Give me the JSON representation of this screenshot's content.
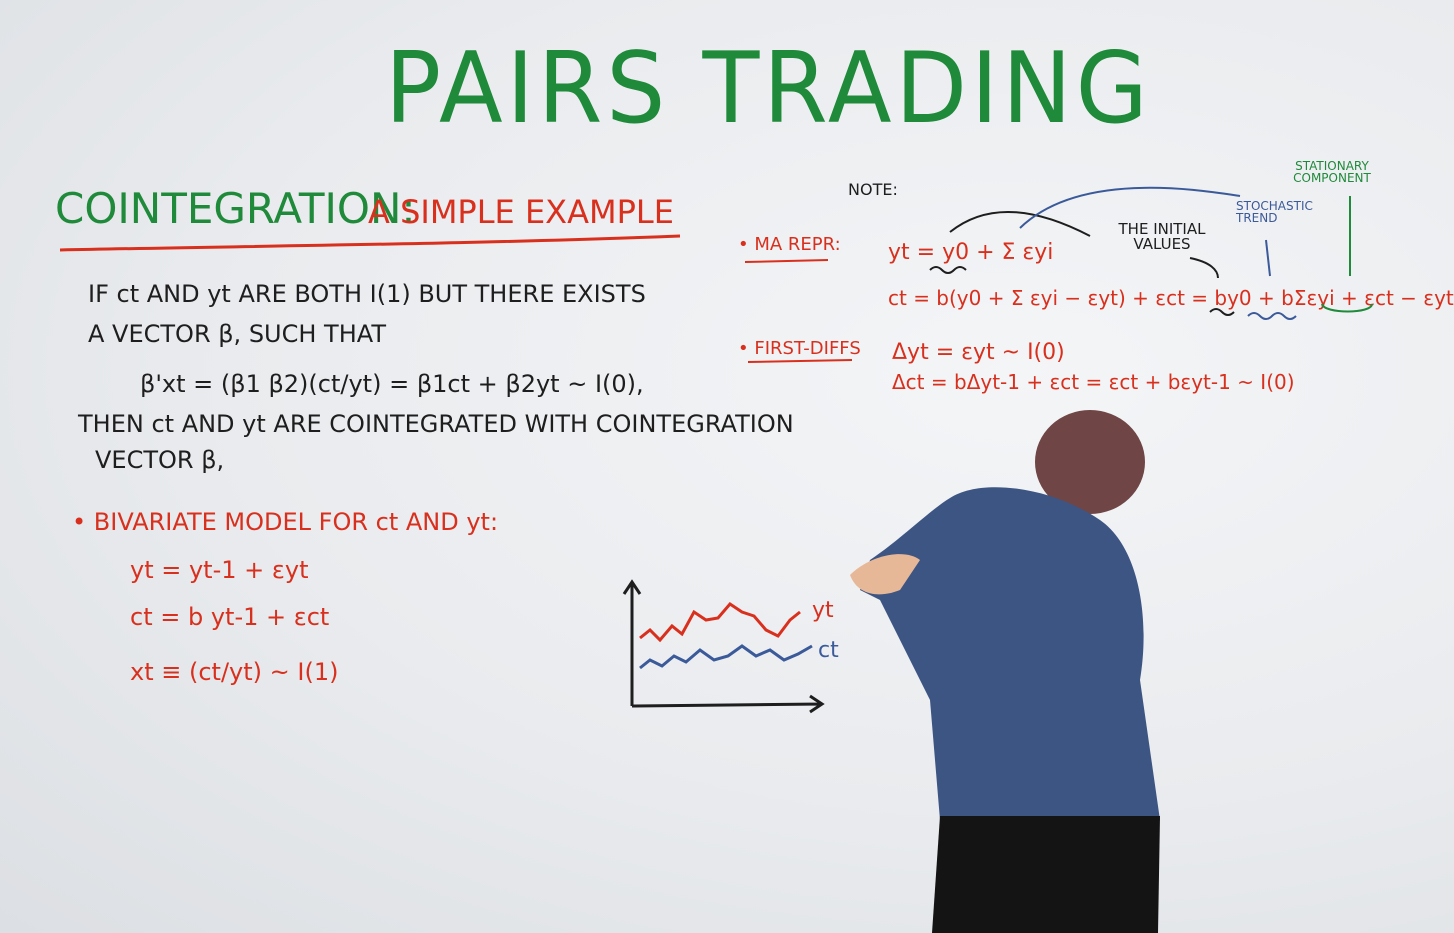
{
  "title": "PAIRS TRADING",
  "subtitle": {
    "part1": "COINTEGRATION:",
    "part2": "A SIMPLE EXAMPLE"
  },
  "definition": {
    "line1": "IF  ct AND yt  ARE BOTH I(1)   BUT THERE EXISTS",
    "line2": "A VECTOR β, SUCH THAT",
    "equation": "β'xt = (β1 β2)(ct/yt) = β1ct + β2yt  ~ I(0),",
    "line3": "THEN  ct AND  yt  ARE COINTEGRATED WITH COINTEGRATION",
    "line4": "VECTOR β,"
  },
  "model": {
    "heading": "• BIVARIATE MODEL FOR  ct AND  yt:",
    "eq1": "yt = yt-1 + εyt",
    "eq2": "ct = b yt-1 + εct",
    "eq3": "xt ≡ (ct/yt) ~ I(1)"
  },
  "note": {
    "label": "NOTE:",
    "stationary": "STATIONARY COMPONENT",
    "stochastic": "STOCHASTIC TREND",
    "initial": "THE INITIAL VALUES",
    "ma_label": "• MA REPR:",
    "ma_eq1": "yt = y0 + Σ εyi",
    "ma_eq2": "ct = b(y0 + Σ εyi − εyt) + εct = by0 + bΣεyi + εct − εyt",
    "fd_label": "• FIRST-DIFFS",
    "fd_eq1": "Δyt = εyt  ~ I(0)",
    "fd_eq2": "Δct = bΔyt-1 + εct = εct + bεyt-1  ~ I(0)"
  },
  "sketch": {
    "label_y": "yt",
    "label_c": "ct"
  },
  "colors": {
    "green": "#1f8a3a",
    "red": "#d9301e",
    "black": "#1e1e1e",
    "blue": "#3b5a9a"
  }
}
